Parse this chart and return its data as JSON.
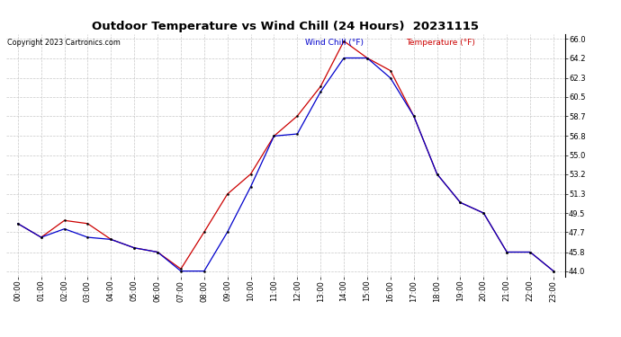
{
  "title": "Outdoor Temperature vs Wind Chill (24 Hours)  20231115",
  "copyright": "Copyright 2023 Cartronics.com",
  "legend_wind": "Wind Chill (°F)",
  "legend_temp": "Temperature (°F)",
  "hours": [
    "00:00",
    "01:00",
    "02:00",
    "03:00",
    "04:00",
    "05:00",
    "06:00",
    "07:00",
    "08:00",
    "09:00",
    "10:00",
    "11:00",
    "12:00",
    "13:00",
    "14:00",
    "15:00",
    "16:00",
    "17:00",
    "18:00",
    "19:00",
    "20:00",
    "21:00",
    "22:00",
    "23:00"
  ],
  "temperature": [
    48.5,
    47.2,
    48.8,
    48.5,
    47.0,
    46.2,
    45.8,
    44.2,
    47.7,
    51.3,
    53.2,
    56.8,
    58.7,
    61.5,
    65.8,
    64.2,
    63.0,
    58.7,
    53.2,
    50.5,
    49.5,
    45.8,
    45.8,
    44.0
  ],
  "wind_chill": [
    48.5,
    47.2,
    48.0,
    47.2,
    47.0,
    46.2,
    45.8,
    44.0,
    44.0,
    47.7,
    52.0,
    56.8,
    57.0,
    61.0,
    64.2,
    64.2,
    62.3,
    58.7,
    53.2,
    50.5,
    49.5,
    45.8,
    45.8,
    44.0
  ],
  "ylim_min": 43.5,
  "ylim_max": 66.5,
  "yticks": [
    44.0,
    45.8,
    47.7,
    49.5,
    51.3,
    53.2,
    55.0,
    56.8,
    58.7,
    60.5,
    62.3,
    64.2,
    66.0
  ],
  "temp_color": "#cc0000",
  "wind_color": "#0000cc",
  "grid_color": "#c8c8c8",
  "bg_color": "#ffffff",
  "title_fontsize": 9.5,
  "tick_fontsize": 6.0,
  "copyright_fontsize": 5.8,
  "legend_fontsize": 6.5,
  "marker_size": 3.0,
  "line_width": 0.9
}
